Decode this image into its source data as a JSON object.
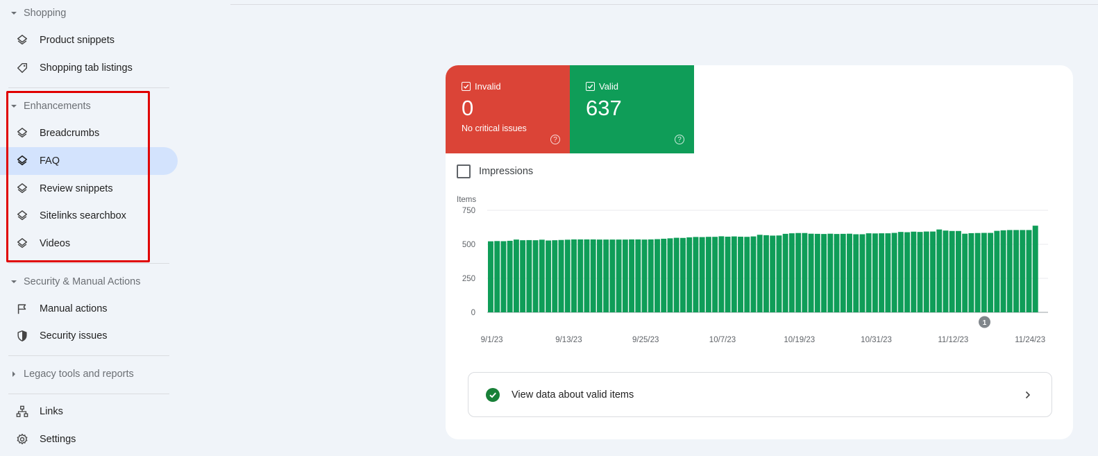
{
  "sidebar": {
    "sections": {
      "shopping": "Shopping",
      "enhancements": "Enhancements",
      "security": "Security & Manual Actions",
      "legacy": "Legacy tools and reports"
    },
    "items": {
      "product_snippets": "Product snippets",
      "shopping_tab": "Shopping tab listings",
      "breadcrumbs": "Breadcrumbs",
      "faq": "FAQ",
      "review_snippets": "Review snippets",
      "sitelinks": "Sitelinks searchbox",
      "videos": "Videos",
      "manual_actions": "Manual actions",
      "security_issues": "Security issues",
      "links": "Links",
      "settings": "Settings"
    },
    "active_item": "FAQ"
  },
  "summary": {
    "invalid": {
      "label": "Invalid",
      "value": "0",
      "sub": "No critical issues",
      "color": "#db4437"
    },
    "valid": {
      "label": "Valid",
      "value": "637",
      "color": "#0f9d58"
    },
    "help_glyph": "?"
  },
  "impressions_label": "Impressions",
  "view_data_label": "View data about valid items",
  "chart_data": {
    "type": "bar",
    "ylabel": "Items",
    "ylim": [
      0,
      750
    ],
    "yticks": [
      0,
      250,
      500,
      750
    ],
    "xtick_labels": [
      "9/1/23",
      "9/13/23",
      "9/25/23",
      "10/7/23",
      "10/19/23",
      "10/31/23",
      "11/12/23",
      "11/24/23"
    ],
    "bar_color": "#0f9d58",
    "annotation": {
      "label": "1",
      "date": "11/17/23"
    },
    "series": [
      {
        "values": [
          522,
          524,
          523,
          526,
          535,
          530,
          531,
          530,
          534,
          528,
          530,
          532,
          534,
          536,
          536,
          536,
          536,
          535,
          535,
          535,
          535,
          535,
          536,
          536,
          535,
          536,
          538,
          541,
          544,
          548,
          547,
          551,
          554,
          553,
          555,
          555,
          559,
          556,
          558,
          556,
          555,
          558,
          570,
          567,
          564,
          565,
          577,
          581,
          583,
          583,
          578,
          577,
          576,
          578,
          576,
          577,
          578,
          574,
          574,
          581,
          580,
          581,
          581,
          584,
          591,
          589,
          593,
          591,
          594,
          594,
          609,
          601,
          598,
          598,
          578,
          582,
          583,
          584,
          584,
          599,
          603,
          605,
          605,
          605,
          605,
          637
        ]
      }
    ]
  }
}
